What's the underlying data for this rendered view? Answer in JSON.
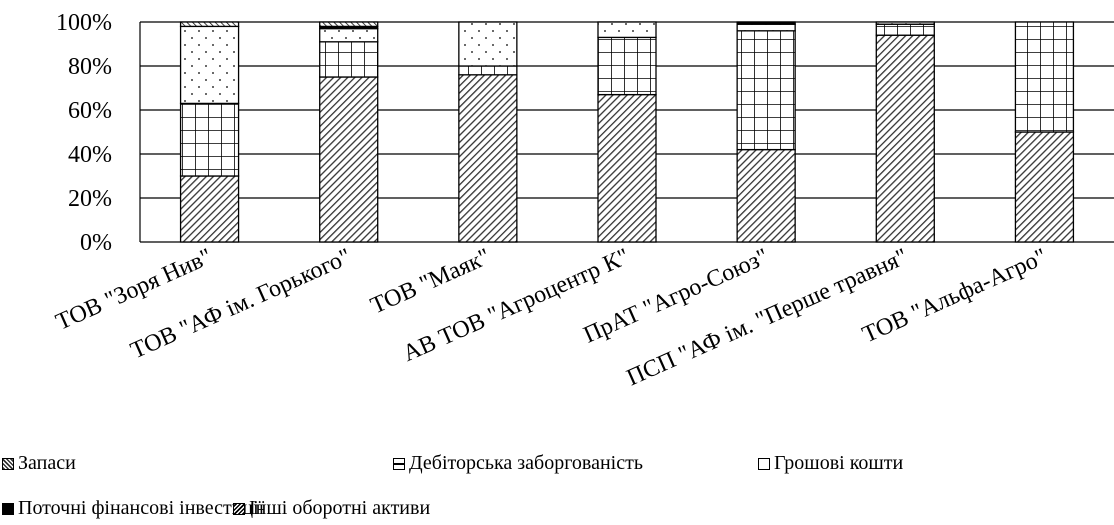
{
  "chart_data": {
    "type": "bar",
    "stacked": true,
    "percent": true,
    "categories": [
      "ТОВ \"Зоря Нив\"",
      "ТОВ \"АФ ім. Горького\"",
      "ТОВ \"Маяк\"",
      "АВ ТОВ \"Агроцентр К\"",
      "ПрАТ \"Агро-Союз\"",
      "ПСП \"АФ ім. \"Перше травня\"",
      "ТОВ \"Альфа-Агро\""
    ],
    "series": [
      {
        "name": "Запаси",
        "values": [
          30,
          75,
          76,
          67,
          42,
          94,
          50
        ],
        "pattern": "diag"
      },
      {
        "name": "Дебіторська заборгованість",
        "values": [
          33,
          16,
          4,
          26,
          54,
          5,
          50
        ],
        "pattern": "grid"
      },
      {
        "name": "Грошові кошти",
        "values": [
          35,
          6,
          20,
          7,
          3,
          1,
          0
        ],
        "pattern": "dots"
      },
      {
        "name": "Поточні фінансові інвестиції",
        "values": [
          0,
          1,
          0,
          0,
          1,
          0,
          0
        ],
        "pattern": "solid"
      },
      {
        "name": "Інші оборотні активи",
        "values": [
          2,
          2,
          0,
          0,
          0,
          0,
          0
        ],
        "pattern": "hatch2"
      }
    ],
    "y_ticks": [
      "0%",
      "20%",
      "40%",
      "60%",
      "80%",
      "100%"
    ],
    "ylim": [
      0,
      100
    ],
    "grid": true,
    "legend_position": "bottom",
    "title": "",
    "xlabel": "",
    "ylabel": ""
  }
}
